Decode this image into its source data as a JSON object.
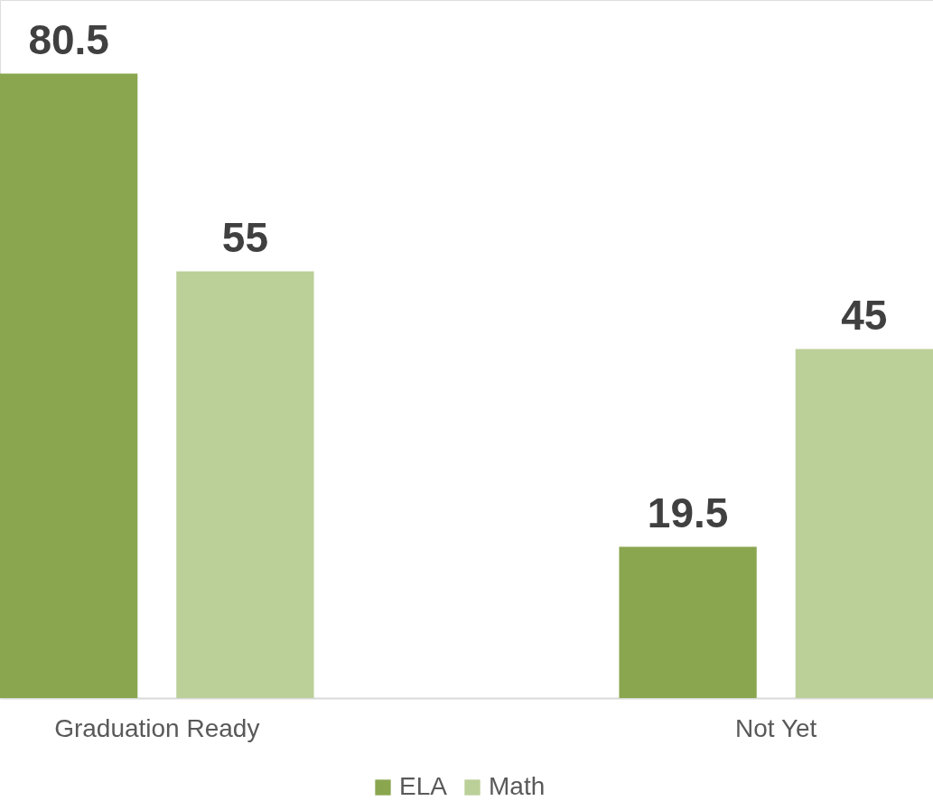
{
  "chart_data": {
    "type": "bar",
    "categories": [
      "Graduation Ready",
      "Not Yet"
    ],
    "series": [
      {
        "name": "ELA",
        "color": "#8aa64f",
        "values": [
          80.5,
          19.5
        ]
      },
      {
        "name": "Math",
        "color": "#bbcf98",
        "values": [
          55,
          45
        ]
      }
    ],
    "ylim": [
      0,
      90
    ],
    "data_labels": true,
    "legend": "bottom",
    "grid": false,
    "tick_labels": "x"
  }
}
